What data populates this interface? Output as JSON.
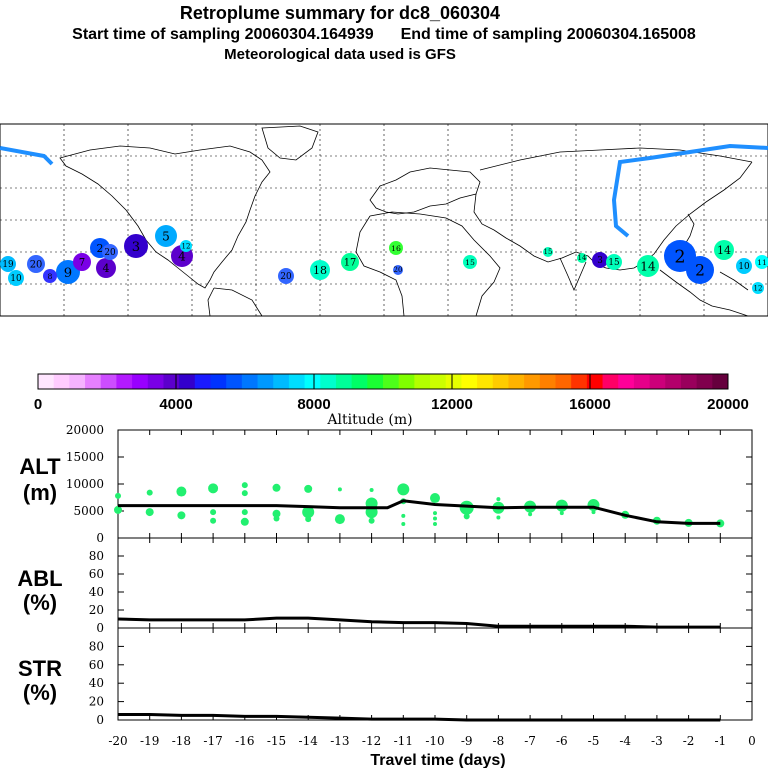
{
  "header": {
    "title": "Retroplume summary for dc8_060304",
    "start_label": "Start time of sampling 20060304.164939",
    "end_label": "End time of sampling 20060304.165008",
    "met_label": "Meteorological data used is GFS"
  },
  "colorbar": {
    "title": "Altitude (m)",
    "ticks": [
      "0",
      "4000",
      "8000",
      "12000",
      "16000",
      "20000"
    ],
    "colors": [
      "#ffe6ff",
      "#ffccff",
      "#f5b3ff",
      "#e680ff",
      "#cc4dff",
      "#b31aff",
      "#9900ff",
      "#7a00e6",
      "#5c00cc",
      "#3300cc",
      "#1a1aff",
      "#0033ff",
      "#0055ff",
      "#0077ff",
      "#0099ff",
      "#00bbff",
      "#00ddff",
      "#00ffff",
      "#00ffcc",
      "#00ff99",
      "#00ff66",
      "#1aff33",
      "#4dff1a",
      "#80ff00",
      "#b3ff00",
      "#ccff00",
      "#e6ff00",
      "#ffff00",
      "#ffe600",
      "#ffcc00",
      "#ffb300",
      "#ff9900",
      "#ff8000",
      "#ff6600",
      "#ff3300",
      "#ff0000",
      "#ff0066",
      "#ff0099",
      "#e6008a",
      "#cc007a",
      "#b3006b",
      "#99005c",
      "#80004d",
      "#66003d"
    ]
  },
  "map": {
    "plume_labels": [
      {
        "n": "20",
        "color": "#3366ff"
      },
      {
        "n": "19",
        "color": "#00bbff"
      },
      {
        "n": "18",
        "color": "#00ffcc"
      },
      {
        "n": "17",
        "color": "#00ff99"
      },
      {
        "n": "16",
        "color": "#33ff33"
      },
      {
        "n": "15",
        "color": "#00ffbb"
      },
      {
        "n": "14",
        "color": "#00ffaa"
      },
      {
        "n": "13",
        "color": "#1aff66"
      },
      {
        "n": "12",
        "color": "#00ddff"
      },
      {
        "n": "11",
        "color": "#00ffff"
      },
      {
        "n": "10",
        "color": "#00ccff"
      },
      {
        "n": "9",
        "color": "#0077ff"
      },
      {
        "n": "8",
        "color": "#3333ff"
      },
      {
        "n": "7",
        "color": "#7a00e6"
      },
      {
        "n": "6",
        "color": "#0099ff"
      },
      {
        "n": "5",
        "color": "#00aaff"
      },
      {
        "n": "4",
        "color": "#5c00cc"
      },
      {
        "n": "3",
        "color": "#3300cc"
      },
      {
        "n": "2",
        "color": "#0055ff"
      },
      {
        "n": "1",
        "color": "#00bbff"
      }
    ]
  },
  "chart_data": [
    {
      "type": "line",
      "panel": "ALT",
      "ylabel": "ALT",
      "yunit": "(m)",
      "ylim": [
        0,
        20000
      ],
      "yticks": [
        0,
        5000,
        10000,
        15000,
        20000
      ],
      "xlabel": "Travel time (days)",
      "xlim": [
        -20,
        0
      ],
      "xticks": [
        -20,
        -19,
        -18,
        -17,
        -16,
        -15,
        -14,
        -13,
        -12,
        -11,
        -10,
        -9,
        -8,
        -7,
        -6,
        -5,
        -4,
        -3,
        -2,
        -1,
        0
      ],
      "median": {
        "x": [
          -20,
          -19,
          -18,
          -17,
          -16,
          -15,
          -14,
          -13,
          -12,
          -11.5,
          -11,
          -10,
          -9,
          -8,
          -7,
          -6,
          -5,
          -4,
          -3,
          -2,
          -1
        ],
        "y": [
          6000,
          6000,
          6000,
          6000,
          6000,
          6000,
          5800,
          5600,
          5600,
          5600,
          6900,
          6200,
          5900,
          5600,
          5700,
          5700,
          5700,
          4200,
          3000,
          2700,
          2700
        ]
      },
      "dots": [
        {
          "x": -20,
          "y": 7800,
          "s": 3
        },
        {
          "x": -20,
          "y": 5200,
          "s": 4
        },
        {
          "x": -19,
          "y": 8400,
          "s": 3
        },
        {
          "x": -19,
          "y": 4800,
          "s": 4
        },
        {
          "x": -18,
          "y": 8600,
          "s": 5
        },
        {
          "x": -18,
          "y": 4200,
          "s": 4
        },
        {
          "x": -17,
          "y": 9200,
          "s": 5
        },
        {
          "x": -17,
          "y": 4800,
          "s": 3
        },
        {
          "x": -17,
          "y": 3200,
          "s": 3
        },
        {
          "x": -16,
          "y": 9800,
          "s": 3
        },
        {
          "x": -16,
          "y": 8300,
          "s": 3
        },
        {
          "x": -16,
          "y": 4800,
          "s": 3
        },
        {
          "x": -16,
          "y": 3000,
          "s": 4
        },
        {
          "x": -15,
          "y": 9300,
          "s": 4
        },
        {
          "x": -15,
          "y": 4500,
          "s": 4
        },
        {
          "x": -15,
          "y": 3600,
          "s": 3
        },
        {
          "x": -14,
          "y": 9100,
          "s": 4
        },
        {
          "x": -14,
          "y": 4800,
          "s": 6
        },
        {
          "x": -14,
          "y": 3500,
          "s": 3
        },
        {
          "x": -13,
          "y": 9000,
          "s": 2
        },
        {
          "x": -13,
          "y": 3500,
          "s": 5
        },
        {
          "x": -12,
          "y": 8900,
          "s": 2
        },
        {
          "x": -12,
          "y": 6400,
          "s": 6
        },
        {
          "x": -12,
          "y": 4800,
          "s": 6
        },
        {
          "x": -12,
          "y": 3200,
          "s": 3
        },
        {
          "x": -11,
          "y": 9000,
          "s": 6
        },
        {
          "x": -11,
          "y": 6800,
          "s": 3
        },
        {
          "x": -11,
          "y": 4100,
          "s": 2
        },
        {
          "x": -11,
          "y": 2600,
          "s": 2
        },
        {
          "x": -10,
          "y": 7400,
          "s": 5
        },
        {
          "x": -10,
          "y": 4600,
          "s": 2
        },
        {
          "x": -10,
          "y": 3600,
          "s": 2
        },
        {
          "x": -10,
          "y": 2600,
          "s": 2
        },
        {
          "x": -9,
          "y": 5600,
          "s": 7
        },
        {
          "x": -9,
          "y": 4000,
          "s": 3
        },
        {
          "x": -8,
          "y": 7200,
          "s": 2
        },
        {
          "x": -8,
          "y": 5600,
          "s": 6
        },
        {
          "x": -8,
          "y": 3800,
          "s": 2
        },
        {
          "x": -7,
          "y": 5800,
          "s": 6
        },
        {
          "x": -7,
          "y": 4400,
          "s": 2
        },
        {
          "x": -6,
          "y": 6000,
          "s": 6
        },
        {
          "x": -6,
          "y": 4600,
          "s": 2
        },
        {
          "x": -5,
          "y": 6100,
          "s": 6
        },
        {
          "x": -5,
          "y": 4800,
          "s": 2
        },
        {
          "x": -4,
          "y": 4300,
          "s": 4
        },
        {
          "x": -3,
          "y": 3200,
          "s": 4
        },
        {
          "x": -2,
          "y": 2800,
          "s": 4
        },
        {
          "x": -1,
          "y": 2700,
          "s": 4
        }
      ]
    },
    {
      "type": "line",
      "panel": "ABL",
      "ylabel": "ABL",
      "yunit": "(%)",
      "ylim": [
        0,
        100
      ],
      "yticks": [
        0,
        20,
        40,
        60,
        80
      ],
      "x": [
        -20,
        -19,
        -18,
        -17,
        -16,
        -15,
        -14,
        -13,
        -12,
        -11,
        -10,
        -9,
        -8,
        -7,
        -6,
        -5,
        -4,
        -3,
        -2,
        -1
      ],
      "y": [
        10,
        9,
        9,
        9,
        9,
        11,
        11,
        9,
        7,
        6,
        6,
        5,
        2,
        2,
        2,
        2,
        2,
        1,
        1,
        1
      ]
    },
    {
      "type": "line",
      "panel": "STR",
      "ylabel": "STR",
      "yunit": "(%)",
      "ylim": [
        0,
        100
      ],
      "yticks": [
        0,
        20,
        40,
        60,
        80
      ],
      "x": [
        -20,
        -19,
        -18,
        -17,
        -16,
        -15,
        -14,
        -13,
        -12,
        -11,
        -10,
        -9,
        -8,
        -7,
        -6,
        -5,
        -4,
        -3,
        -2,
        -1
      ],
      "y": [
        6,
        6,
        5,
        5,
        4,
        4,
        3,
        2,
        1,
        1,
        1,
        0,
        0,
        0,
        0,
        0,
        0,
        0,
        0,
        0
      ]
    }
  ]
}
